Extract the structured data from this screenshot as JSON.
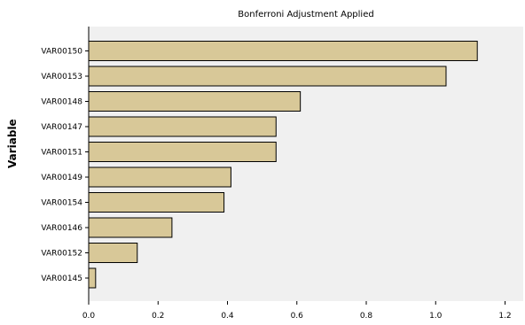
{
  "chart_data": {
    "type": "bar",
    "orientation": "horizontal",
    "title": "Bonferroni Adjustment Applied",
    "ylabel": "Variable",
    "xlabel": "",
    "categories": [
      "VAR00150",
      "VAR00153",
      "VAR00148",
      "VAR00147",
      "VAR00151",
      "VAR00149",
      "VAR00154",
      "VAR00146",
      "VAR00152",
      "VAR00145"
    ],
    "values": [
      1.12,
      1.03,
      0.61,
      0.54,
      0.54,
      0.41,
      0.39,
      0.24,
      0.14,
      0.02
    ],
    "xlim": [
      0,
      1.25
    ],
    "xticks": [
      "0.0",
      "0.2",
      "0.4",
      "0.6",
      "0.8",
      "1.0",
      "1.2"
    ],
    "grid": false,
    "colors": {
      "bar_fill": "#d8c898",
      "bar_stroke": "#000000",
      "plot_background": "#f0f0f0"
    }
  }
}
